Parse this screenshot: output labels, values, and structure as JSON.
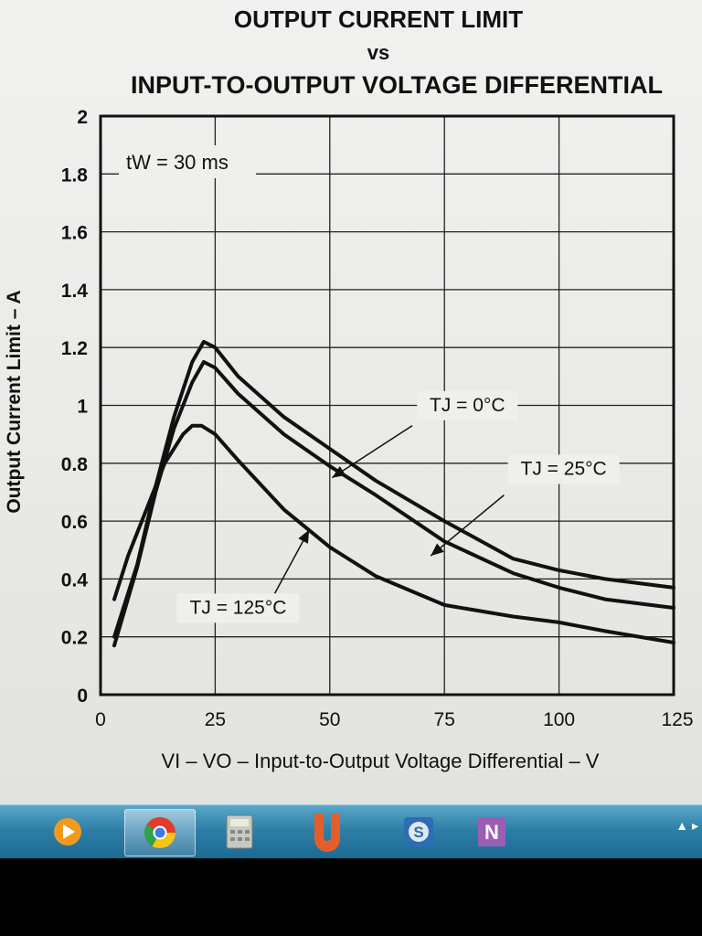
{
  "chart_data": {
    "type": "line",
    "title_lines": [
      "OUTPUT CURRENT LIMIT",
      "vs",
      "INPUT-TO-OUTPUT VOLTAGE DIFFERENTIAL"
    ],
    "xlabel": "VI – VO – Input-to-Output Voltage Differential – V",
    "ylabel": "Output Current Limit – A",
    "xlim": [
      0,
      125
    ],
    "ylim": [
      0,
      2
    ],
    "x_ticks": [
      "0",
      "25",
      "50",
      "75",
      "100",
      "125"
    ],
    "y_ticks": [
      "0",
      "0.2",
      "0.4",
      "0.6",
      "0.8",
      "1",
      "1.2",
      "1.4",
      "1.6",
      "1.8",
      "2"
    ],
    "grid": true,
    "annotation": "tW = 30 ms",
    "series": [
      {
        "name": "TJ = 0°C",
        "x": [
          3,
          8,
          12,
          16,
          20,
          22.5,
          25,
          30,
          40,
          50,
          60,
          75,
          90,
          100,
          110,
          125
        ],
        "values": [
          0.2,
          0.45,
          0.72,
          0.96,
          1.15,
          1.22,
          1.2,
          1.1,
          0.96,
          0.85,
          0.74,
          0.6,
          0.47,
          0.43,
          0.4,
          0.37
        ]
      },
      {
        "name": "TJ = 25°C",
        "x": [
          3,
          8,
          12,
          16,
          20,
          22.5,
          25,
          30,
          40,
          50,
          60,
          75,
          90,
          100,
          110,
          125
        ],
        "values": [
          0.17,
          0.44,
          0.7,
          0.92,
          1.08,
          1.15,
          1.13,
          1.04,
          0.9,
          0.79,
          0.69,
          0.53,
          0.42,
          0.37,
          0.33,
          0.3
        ]
      },
      {
        "name": "TJ = 125°C",
        "x": [
          3,
          6,
          10,
          14,
          18,
          20,
          22,
          25,
          30,
          40,
          50,
          60,
          75,
          90,
          100,
          110,
          125
        ],
        "values": [
          0.33,
          0.48,
          0.64,
          0.8,
          0.9,
          0.93,
          0.93,
          0.9,
          0.81,
          0.64,
          0.51,
          0.41,
          0.31,
          0.27,
          0.25,
          0.22,
          0.18
        ]
      }
    ],
    "curve_labels": [
      {
        "series": 0,
        "text": "TJ = 0°C"
      },
      {
        "series": 1,
        "text": "TJ = 25°C"
      },
      {
        "series": 2,
        "text": "TJ = 125°C"
      }
    ]
  },
  "taskbar": {
    "items": [
      {
        "name": "media-player-icon"
      },
      {
        "name": "chrome-icon"
      },
      {
        "name": "calculator-icon"
      },
      {
        "name": "u-app-icon"
      },
      {
        "name": "snagit-icon"
      },
      {
        "name": "onenote-icon",
        "letter": "N"
      }
    ],
    "tray": "▲  ▸"
  }
}
